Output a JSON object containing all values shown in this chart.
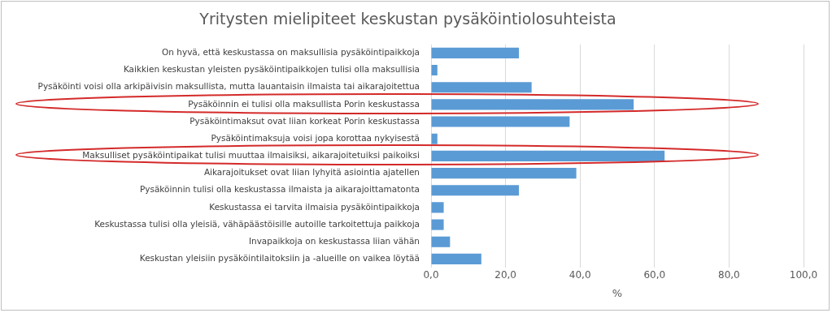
{
  "chart_data": {
    "type": "bar",
    "orientation": "horizontal",
    "title": "Yritysten mielipiteet keskustan pysäköintiolosuhteista",
    "xlabel": "%",
    "categories": [
      "On hyvä, että keskustassa on maksullisia pysäköintipaikkoja",
      "Kaikkien keskustan yleisten pysäköintipaikkojen tulisi olla maksullisia",
      "Pysäköinti voisi olla arkipäivisin maksullista, mutta lauantaisin ilmaista tai aikarajoitettua",
      "Pysäköinnin ei tulisi olla maksullista Porin keskustassa",
      "Pysäköintimaksut ovat liian korkeat Porin keskustassa",
      "Pysäköintimaksuja voisi jopa korottaa nykyisestä",
      "Maksulliset pysäköintipaikat tulisi muuttaa ilmaisiksi, aikarajoitetuiksi paikoiksi",
      "Aikarajoitukset ovat liian lyhyitä asiointia ajatellen",
      "Pysäköinnin tulisi olla keskustassa ilmaista ja aikarajoittamatonta",
      "Keskustassa ei tarvita ilmaisia pysäköintipaikkoja",
      "Keskustassa tulisi olla yleisiä, vähäpäästöisille autoille tarkoitettuja paikkoja",
      "Invapaikkoja on keskustassa liian vähän",
      "Keskustan yleisiin pysäköintilaitoksiin ja -alueille on vaikea löytää"
    ],
    "values": [
      23.6,
      1.7,
      27.0,
      54.4,
      37.2,
      1.7,
      62.7,
      39.0,
      23.6,
      3.4,
      3.4,
      5.1,
      13.5
    ],
    "color": "#5b9bd5",
    "xlim": [
      0,
      100
    ],
    "xticks": [
      {
        "value": 0,
        "label": "0,0"
      },
      {
        "value": 20,
        "label": "20,0"
      },
      {
        "value": 40,
        "label": "40,0"
      },
      {
        "value": 60,
        "label": "60,0"
      },
      {
        "value": 80,
        "label": "80,0"
      },
      {
        "value": 100,
        "label": "100,0"
      }
    ],
    "grid": "x",
    "legend": false
  }
}
